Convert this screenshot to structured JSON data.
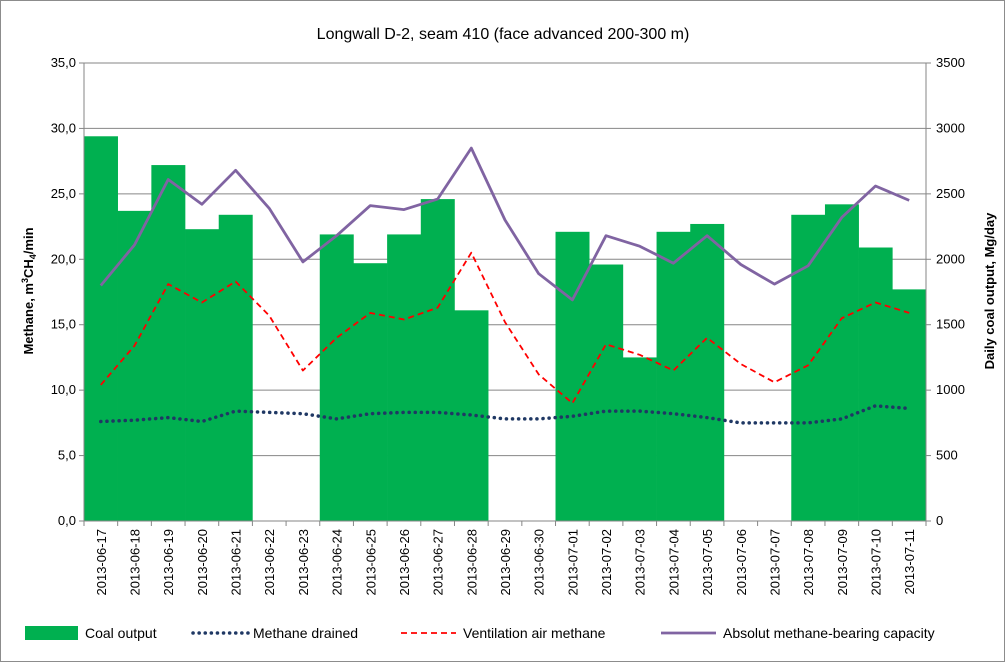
{
  "chart_data": {
    "type": "bar+line",
    "title": "Longwall D-2, seam 410 (face advanced 200-300 m)",
    "ylabel_left_parts": [
      "Methane, m",
      "3",
      "CH",
      "4",
      "/min"
    ],
    "ylabel_right": "Daily coal output, Mg/day",
    "y_left": {
      "min": 0,
      "max": 35,
      "ticks": [
        "0,0",
        "5,0",
        "10,0",
        "15,0",
        "20,0",
        "25,0",
        "30,0",
        "35,0"
      ]
    },
    "y_right": {
      "min": 0,
      "max": 3500,
      "ticks": [
        "0",
        "500",
        "1000",
        "1500",
        "2000",
        "2500",
        "3000",
        "3500"
      ]
    },
    "categories": [
      "2013-06-17",
      "2013-06-18",
      "2013-06-19",
      "2013-06-20",
      "2013-06-21",
      "2013-06-22",
      "2013-06-23",
      "2013-06-24",
      "2013-06-25",
      "2013-06-26",
      "2013-06-27",
      "2013-06-28",
      "2013-06-29",
      "2013-06-30",
      "2013-07-01",
      "2013-07-02",
      "2013-07-03",
      "2013-07-04",
      "2013-07-05",
      "2013-07-06",
      "2013-07-07",
      "2013-07-08",
      "2013-07-09",
      "2013-07-10",
      "2013-07-11"
    ],
    "series": [
      {
        "name": "Coal output",
        "kind": "bar",
        "axis": "right",
        "color": "#00b050",
        "values": [
          2940,
          2370,
          2720,
          2230,
          2340,
          0,
          0,
          2190,
          1970,
          2190,
          2460,
          1610,
          0,
          0,
          2210,
          1960,
          1250,
          2210,
          2270,
          0,
          0,
          2340,
          2420,
          2090,
          1770
        ]
      },
      {
        "name": "Methane drained",
        "kind": "dotted",
        "axis": "left",
        "color": "#1f3864",
        "values": [
          7.6,
          7.7,
          7.9,
          7.6,
          8.4,
          8.3,
          8.2,
          7.8,
          8.2,
          8.3,
          8.3,
          8.1,
          7.8,
          7.8,
          8.0,
          8.4,
          8.4,
          8.2,
          7.9,
          7.5,
          7.5,
          7.5,
          7.8,
          8.8,
          8.6
        ]
      },
      {
        "name": "Ventilation air methane",
        "kind": "dashed",
        "axis": "left",
        "color": "#ff0000",
        "values": [
          10.4,
          13.4,
          18.1,
          16.7,
          18.3,
          15.7,
          11.5,
          14.0,
          15.9,
          15.4,
          16.3,
          20.5,
          15.2,
          11.2,
          9.0,
          13.5,
          12.7,
          11.5,
          14.0,
          12.0,
          10.6,
          11.9,
          15.5,
          16.7,
          15.9
        ]
      },
      {
        "name": "Absolut methane-bearing capacity",
        "kind": "line",
        "axis": "left",
        "color": "#8064a2",
        "values": [
          18.0,
          21.1,
          26.1,
          24.2,
          26.8,
          23.9,
          19.8,
          21.8,
          24.1,
          23.8,
          24.6,
          28.5,
          23.0,
          18.9,
          16.9,
          21.8,
          21.0,
          19.7,
          21.8,
          19.6,
          18.1,
          19.5,
          23.2,
          25.6,
          24.5
        ]
      }
    ],
    "grid": {
      "horizontal": true,
      "vertical": false
    },
    "legend_position": "bottom"
  }
}
